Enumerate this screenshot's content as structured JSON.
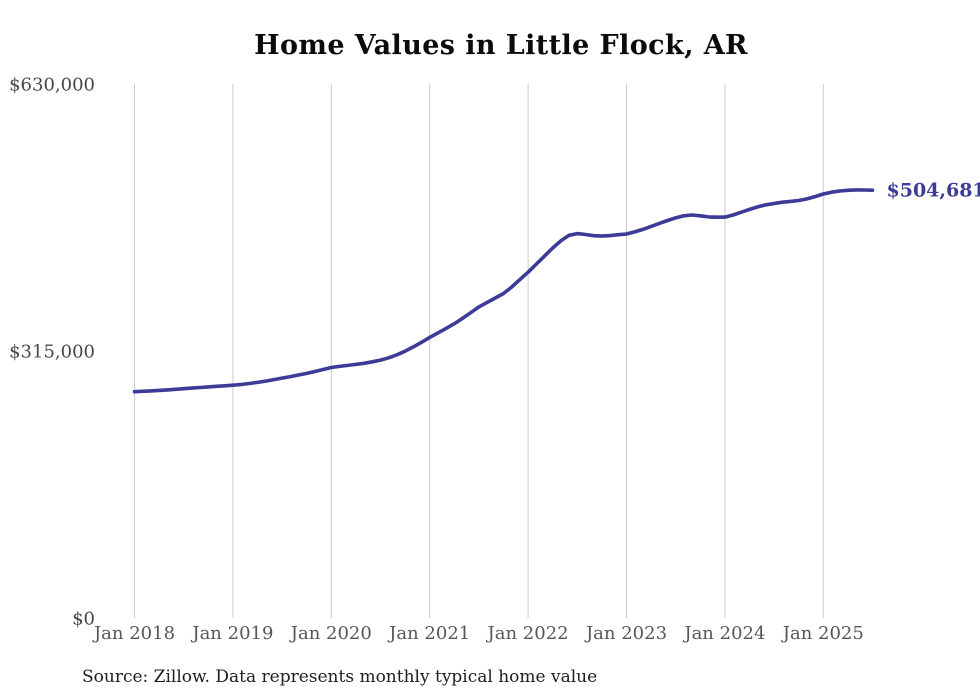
{
  "chart": {
    "title": "Home Values in Little Flock, AR",
    "source": "Source: Zillow. Data represents monthly typical home value"
  },
  "chart_data": {
    "type": "line",
    "title": "Home Values in Little Flock, AR",
    "subtitle": "",
    "xlabel": "",
    "ylabel": "",
    "source": "Source: Zillow. Data represents monthly typical home value",
    "ylim": [
      0,
      630000
    ],
    "grid": "vertical-only",
    "legend": "none",
    "line_color": "#3d3b98",
    "gridline_color": "#cbcbcb",
    "y_ticks": [
      {
        "value": 630000,
        "label": "$630,000"
      },
      {
        "value": 315000,
        "label": "$315,000"
      },
      {
        "value": 0,
        "label": "$0"
      }
    ],
    "x_ticks": [
      {
        "label": "Jan 2018",
        "month_index": 0
      },
      {
        "label": "Jan 2019",
        "month_index": 12
      },
      {
        "label": "Jan 2020",
        "month_index": 24
      },
      {
        "label": "Jan 2021",
        "month_index": 36
      },
      {
        "label": "Jan 2022",
        "month_index": 48
      },
      {
        "label": "Jan 2023",
        "month_index": 60
      },
      {
        "label": "Jan 2024",
        "month_index": 72
      },
      {
        "label": "Jan 2025",
        "month_index": 84
      }
    ],
    "series": [
      {
        "name": "Typical home value",
        "frequency": "monthly",
        "start_month": "2018-01",
        "end_month": "2025-07",
        "end_label": "$504,681",
        "final_value": 504681,
        "values": [
          267000,
          267400,
          267900,
          268500,
          269100,
          269800,
          270500,
          271200,
          271900,
          272600,
          273300,
          274000,
          274600,
          275500,
          276600,
          278000,
          279500,
          281200,
          283000,
          284800,
          286700,
          288600,
          290800,
          293200,
          295500,
          296800,
          298000,
          299200,
          300500,
          302200,
          304300,
          307000,
          310500,
          314800,
          319800,
          325300,
          331000,
          336300,
          341700,
          347200,
          353500,
          360200,
          367000,
          372300,
          377500,
          382800,
          390500,
          399200,
          408000,
          417500,
          427000,
          436500,
          445000,
          451500,
          453500,
          452500,
          451000,
          450500,
          451200,
          452200,
          453000,
          455500,
          458500,
          462000,
          465500,
          469000,
          472000,
          474500,
          475500,
          474500,
          473200,
          472800,
          473000,
          475500,
          478800,
          482000,
          485000,
          487500,
          489000,
          490500,
          491500,
          492500,
          494500,
          497200,
          500200,
          502400,
          503800,
          504600,
          505100,
          505000,
          504681
        ]
      }
    ]
  }
}
